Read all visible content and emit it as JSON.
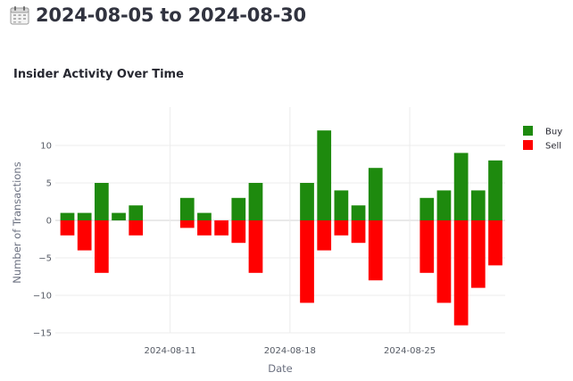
{
  "header": {
    "icon": "calendar-icon",
    "title": "2024-08-05 to 2024-08-30"
  },
  "chart_data": {
    "type": "bar",
    "barmode": "relative",
    "title": "Insider Activity Over Time",
    "xlabel": "Date",
    "ylabel": "Number of Transactions",
    "x": [
      "2024-08-05",
      "2024-08-06",
      "2024-08-07",
      "2024-08-08",
      "2024-08-09",
      "2024-08-12",
      "2024-08-13",
      "2024-08-14",
      "2024-08-15",
      "2024-08-16",
      "2024-08-19",
      "2024-08-20",
      "2024-08-21",
      "2024-08-22",
      "2024-08-23",
      "2024-08-26",
      "2024-08-27",
      "2024-08-28",
      "2024-08-29",
      "2024-08-30"
    ],
    "series": [
      {
        "name": "Buy",
        "color": "#1e8a0e",
        "values": [
          1,
          1,
          5,
          1,
          2,
          3,
          1,
          0,
          3,
          5,
          5,
          12,
          4,
          2,
          7,
          3,
          4,
          9,
          4,
          8
        ]
      },
      {
        "name": "Sell",
        "color": "#ff0000",
        "values": [
          -2,
          -4,
          -7,
          0,
          -2,
          -1,
          -2,
          -2,
          -3,
          -7,
          -11,
          -4,
          -2,
          -3,
          -8,
          -7,
          -11,
          -14,
          -9,
          -6
        ]
      }
    ],
    "xticks": [
      "2024-08-11",
      "2024-08-18",
      "2024-08-25"
    ],
    "yticks": [
      10,
      5,
      0,
      -5,
      -10,
      -15
    ],
    "ylim": [
      -16,
      14
    ],
    "xrange": [
      "2024-08-04",
      "2024-08-30"
    ],
    "grid": true,
    "legend_position": "top-right"
  }
}
